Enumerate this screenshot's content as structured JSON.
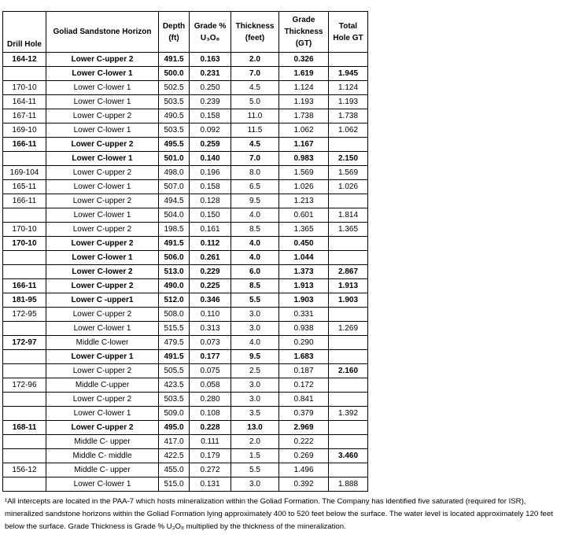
{
  "table": {
    "headers": {
      "drill_hole": "Drill Hole",
      "horizon": "Goliad Sandstone Horizon",
      "depth": [
        "Depth",
        "(ft)"
      ],
      "grade": [
        "Grade %",
        "U₃O₈"
      ],
      "thickness": [
        "Thickness",
        "(feet)"
      ],
      "gt": [
        "Grade",
        "Thickness",
        "(GT)"
      ],
      "total": [
        "Total",
        "Hole GT"
      ]
    },
    "rows": [
      {
        "cells": [
          "164-12",
          "Lower C-upper 2",
          "491.5",
          "0.163",
          "2.0",
          "0.326",
          ""
        ],
        "bold": "all"
      },
      {
        "cells": [
          "",
          "Lower C-lower 1",
          "500.0",
          "0.231",
          "7.0",
          "1.619",
          "1.945"
        ],
        "bold": "all"
      },
      {
        "cells": [
          "170-10",
          "Lower C-lower 1",
          "502.5",
          "0.250",
          "4.5",
          "1.124",
          "1.124"
        ],
        "bold": "none"
      },
      {
        "cells": [
          "164-11",
          "Lower C-lower 1",
          "503.5",
          "0.239",
          "5.0",
          "1.193",
          "1.193"
        ],
        "bold": "none"
      },
      {
        "cells": [
          "167-11",
          "Lower C-upper 2",
          "490.5",
          "0.158",
          "11.0",
          "1.738",
          "1.738"
        ],
        "bold": "none"
      },
      {
        "cells": [
          "169-10",
          "Lower C-lower 1",
          "503.5",
          "0.092",
          "11.5",
          "1.062",
          "1.062"
        ],
        "bold": "none"
      },
      {
        "cells": [
          "166-11",
          "Lower C-upper 2",
          "495.5",
          "0.259",
          "4.5",
          "1.167",
          ""
        ],
        "bold": "all"
      },
      {
        "cells": [
          "",
          "Lower C-lower 1",
          "501.0",
          "0.140",
          "7.0",
          "0.983",
          "2.150"
        ],
        "bold": "all"
      },
      {
        "cells": [
          "169-104",
          "Lower C-upper 2",
          "498.0",
          "0.196",
          "8.0",
          "1.569",
          "1.569"
        ],
        "bold": "none"
      },
      {
        "cells": [
          "165-11",
          "Lower C-lower 1",
          "507.0",
          "0.158",
          "6.5",
          "1.026",
          "1.026"
        ],
        "bold": "none"
      },
      {
        "cells": [
          "166-11",
          "Lower C-upper 2",
          "494.5",
          "0.128",
          "9.5",
          "1.213",
          ""
        ],
        "bold": "none"
      },
      {
        "cells": [
          "",
          "Lower C-lower 1",
          "504.0",
          "0.150",
          "4.0",
          "0.601",
          "1.814"
        ],
        "bold": "none"
      },
      {
        "cells": [
          "170-10",
          "Lower C-upper 2",
          "198.5",
          "0.161",
          "8.5",
          "1.365",
          "1.365"
        ],
        "bold": "none"
      },
      {
        "cells": [
          "170-10",
          "Lower C-upper 2",
          "491.5",
          "0.112",
          "4.0",
          "0.450",
          ""
        ],
        "bold": "all"
      },
      {
        "cells": [
          "",
          "Lower C-lower 1",
          "506.0",
          "0.261",
          "4.0",
          "1.044",
          ""
        ],
        "bold": "all"
      },
      {
        "cells": [
          "",
          "Lower C-lower 2",
          "513.0",
          "0.229",
          "6.0",
          "1.373",
          "2.867"
        ],
        "bold": "all"
      },
      {
        "cells": [
          "166-11",
          "Lower C-upper 2",
          "490.0",
          "0.225",
          "8.5",
          "1.913",
          "1.913"
        ],
        "bold": "all"
      },
      {
        "cells": [
          "181-95",
          "Lower C -upper1",
          "512.0",
          "0.346",
          "5.5",
          "1.903",
          "1.903"
        ],
        "bold": "all"
      },
      {
        "cells": [
          "172-95",
          "Lower C-upper 2",
          "508.0",
          "0.110",
          "3.0",
          "0.331",
          ""
        ],
        "bold": "none"
      },
      {
        "cells": [
          "",
          "Lower C-lower 1",
          "515.5",
          "0.313",
          "3.0",
          "0.938",
          "1.269"
        ],
        "bold": "none"
      },
      {
        "cells": [
          "172-97",
          "Middle C-lower",
          "479.5",
          "0.073",
          "4.0",
          "0.290",
          ""
        ],
        "bold": [
          0
        ]
      },
      {
        "cells": [
          "",
          "Lower C-upper 1",
          "491.5",
          "0.177",
          "9.5",
          "1.683",
          ""
        ],
        "bold": "all"
      },
      {
        "cells": [
          "",
          "Lower C-upper 2",
          "505.5",
          "0.075",
          "2.5",
          "0.187",
          "2.160"
        ],
        "bold": [
          6
        ]
      },
      {
        "cells": [
          "172-96",
          "Middle C-upper",
          "423.5",
          "0.058",
          "3.0",
          "0.172",
          ""
        ],
        "bold": "none"
      },
      {
        "cells": [
          "",
          "Lower C-upper 2",
          "503.5",
          "0.280",
          "3.0",
          "0.841",
          ""
        ],
        "bold": "none"
      },
      {
        "cells": [
          "",
          "Lower C-lower 1",
          "509.0",
          "0.108",
          "3.5",
          "0.379",
          "1.392"
        ],
        "bold": "none"
      },
      {
        "cells": [
          "168-11",
          "Lower C-upper 2",
          "495.0",
          "0.228",
          "13.0",
          "2.969",
          ""
        ],
        "bold": "all"
      },
      {
        "cells": [
          "",
          "Middle C- upper",
          "417.0",
          "0.111",
          "2.0",
          "0.222",
          ""
        ],
        "bold": "none"
      },
      {
        "cells": [
          "",
          "Middle C- middle",
          "422.5",
          "0.179",
          "1.5",
          "0.269",
          "3.460"
        ],
        "bold": [
          6
        ]
      },
      {
        "cells": [
          "156-12",
          "Middle C- upper",
          "455.0",
          "0.272",
          "5.5",
          "1.496",
          ""
        ],
        "bold": "none"
      },
      {
        "cells": [
          "",
          "Lower C-lower 1",
          "515.0",
          "0.131",
          "3.0",
          "0.392",
          "1.888"
        ],
        "bold": "none"
      }
    ]
  },
  "footnote": "¹All intercepts are located in the PAA-7 which hosts mineralization within the Goliad Formation. The Company has identified five saturated (required for ISR), mineralized sandstone horizons within the Goliad Formation lying approximately 400 to 520 feet below the surface. The water level is located approximately 120 feet below the surface. Grade Thickness is Grade % U₃O₈ multiplied by the thickness of the mineralization."
}
